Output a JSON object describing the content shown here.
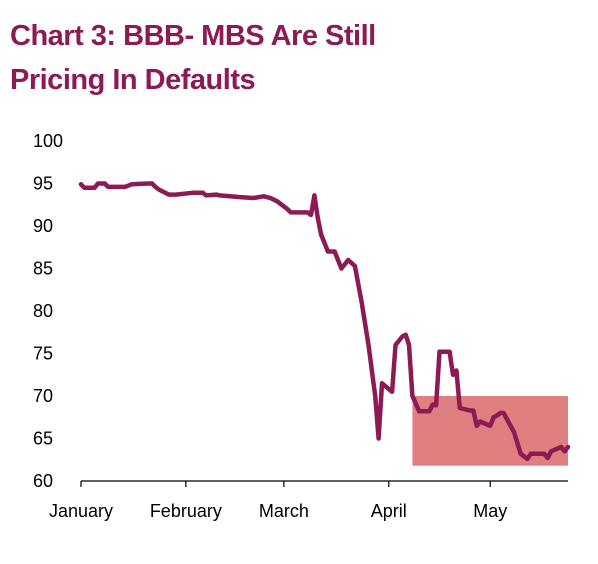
{
  "title_line1": "Chart 3: BBB- MBS Are Still",
  "title_line2": "Pricing In Defaults",
  "colors": {
    "title": "#8b1a55",
    "line": "#8b1a55",
    "highlight": "#e07f80",
    "axis": "#000000"
  },
  "chart_data": {
    "type": "line",
    "title": "Chart 3: BBB- MBS Are Still Pricing In Defaults",
    "xlabel": "",
    "ylabel": "",
    "x_ticks": [
      "January",
      "February",
      "March",
      "April",
      "May"
    ],
    "x_tick_dates": [
      "2020-01-01",
      "2020-02-01",
      "2020-03-01",
      "2020-04-01",
      "2020-05-01"
    ],
    "xlim": [
      "2020-01-01",
      "2020-05-24"
    ],
    "ylim": [
      60,
      100
    ],
    "y_ticks": [
      60,
      65,
      70,
      75,
      80,
      85,
      90,
      95,
      100
    ],
    "grid": false,
    "legend": "none",
    "highlight_region": {
      "x": [
        "2020-04-08",
        "2020-05-24"
      ],
      "y": [
        61.8,
        70
      ]
    },
    "series": [
      {
        "x": [
          "2020-01-01",
          "2020-01-02",
          "2020-01-05",
          "2020-01-06",
          "2020-01-08",
          "2020-01-09",
          "2020-01-10",
          "2020-01-14",
          "2020-01-16",
          "2020-01-21",
          "2020-01-22",
          "2020-01-23",
          "2020-01-24",
          "2020-01-27",
          "2020-01-29",
          "2020-02-03",
          "2020-02-06",
          "2020-02-07",
          "2020-02-10",
          "2020-02-11",
          "2020-02-17",
          "2020-02-21",
          "2020-02-24",
          "2020-02-26",
          "2020-02-28",
          "2020-03-02",
          "2020-03-03",
          "2020-03-04",
          "2020-03-05",
          "2020-03-08",
          "2020-03-09",
          "2020-03-10",
          "2020-03-11",
          "2020-03-12",
          "2020-03-14",
          "2020-03-16",
          "2020-03-18",
          "2020-03-20",
          "2020-03-22",
          "2020-03-24",
          "2020-03-26",
          "2020-03-28",
          "2020-03-29",
          "2020-03-30",
          "2020-04-02",
          "2020-04-03",
          "2020-04-05",
          "2020-04-06",
          "2020-04-07",
          "2020-04-08",
          "2020-04-10",
          "2020-04-11",
          "2020-04-12",
          "2020-04-13",
          "2020-04-14",
          "2020-04-15",
          "2020-04-16",
          "2020-04-18",
          "2020-04-19",
          "2020-04-20",
          "2020-04-21",
          "2020-04-22",
          "2020-04-25",
          "2020-04-26",
          "2020-04-27",
          "2020-04-28",
          "2020-05-01",
          "2020-05-02",
          "2020-05-03",
          "2020-05-04",
          "2020-05-05",
          "2020-05-07",
          "2020-05-08",
          "2020-05-09",
          "2020-05-10",
          "2020-05-12",
          "2020-05-13",
          "2020-05-17",
          "2020-05-18",
          "2020-05-19",
          "2020-05-22",
          "2020-05-23",
          "2020-05-24"
        ],
        "y": [
          94.9,
          94.5,
          94.5,
          95.0,
          95.0,
          94.6,
          94.6,
          94.6,
          94.9,
          95.0,
          95.0,
          94.6,
          94.3,
          93.7,
          93.7,
          93.9,
          93.9,
          93.6,
          93.7,
          93.6,
          93.4,
          93.3,
          93.5,
          93.3,
          92.9,
          92.0,
          91.6,
          91.6,
          91.6,
          91.6,
          91.3,
          93.6,
          91.0,
          89.0,
          87.0,
          87.0,
          85.0,
          86.0,
          85.3,
          81.0,
          76.0,
          70.0,
          65.0,
          71.5,
          70.5,
          76.0,
          77.0,
          77.2,
          76.0,
          70.0,
          68.2,
          68.2,
          68.2,
          68.2,
          69.0,
          68.9,
          75.2,
          75.2,
          75.2,
          72.5,
          73.0,
          68.6,
          68.3,
          68.3,
          66.5,
          67.0,
          66.5,
          67.5,
          67.7,
          68.0,
          68.0,
          66.5,
          65.8,
          64.5,
          63.2,
          62.6,
          63.2,
          63.2,
          62.7,
          63.5,
          64.0,
          63.5,
          64.0
        ]
      }
    ]
  }
}
